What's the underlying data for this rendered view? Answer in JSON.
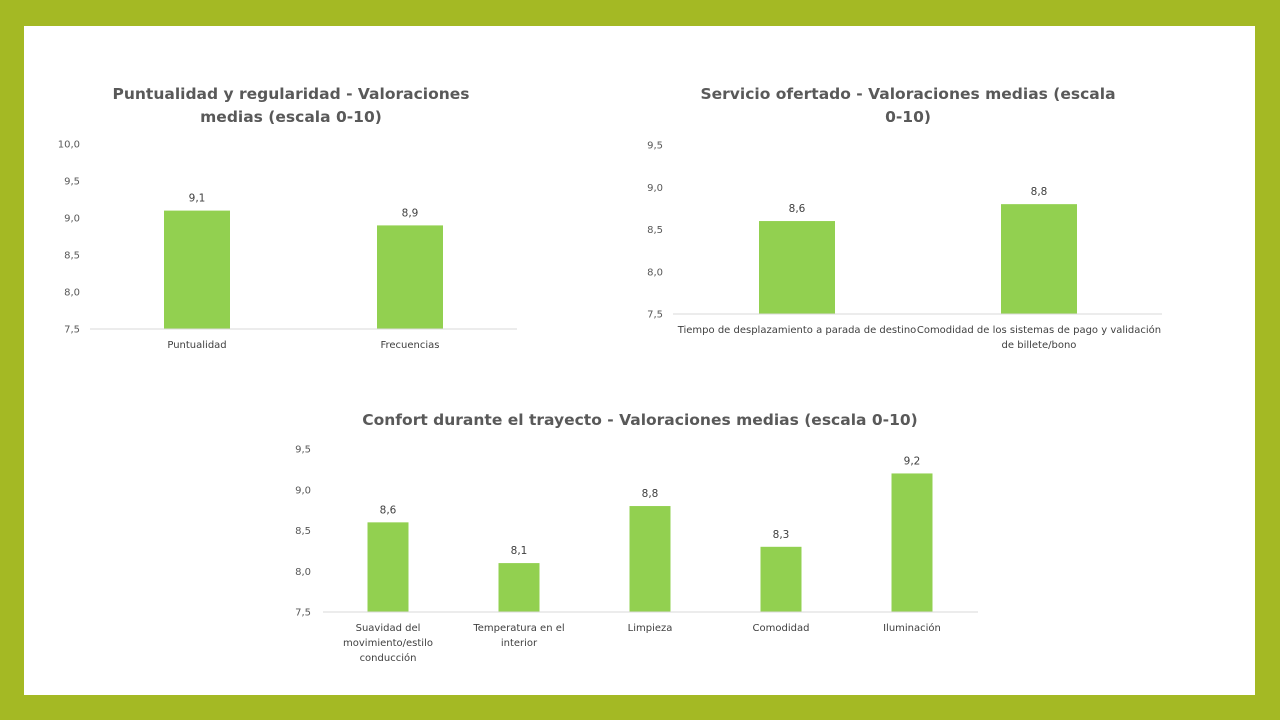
{
  "colors": {
    "frame": "#a4b924",
    "bar": "#92d050",
    "axis": "#d9d9d9"
  },
  "chart_data": [
    {
      "type": "bar",
      "title": "Puntualidad y regularidad - Valoraciones medias (escala 0-10)",
      "categories": [
        "Puntualidad",
        "Frecuencias"
      ],
      "values": [
        9.1,
        8.9
      ],
      "value_labels": [
        "9,1",
        "8,9"
      ],
      "ylim": [
        7.5,
        10.0
      ],
      "yticks": [
        7.5,
        8.0,
        8.5,
        9.0,
        9.5,
        10.0
      ],
      "ytick_labels": [
        "7,5",
        "8,0",
        "8,5",
        "9,0",
        "9,5",
        "10,0"
      ],
      "grid": false,
      "legend": false
    },
    {
      "type": "bar",
      "title": "Servicio ofertado -  Valoraciones medias (escala 0-10)",
      "categories": [
        "Tiempo de desplazamiento a parada de destino",
        "Comodidad de los sistemas de pago y validación de billete/bono"
      ],
      "values": [
        8.6,
        8.8
      ],
      "value_labels": [
        "8,6",
        "8,8"
      ],
      "ylim": [
        7.5,
        9.5
      ],
      "yticks": [
        7.5,
        8.0,
        8.5,
        9.0,
        9.5
      ],
      "ytick_labels": [
        "7,5",
        "8,0",
        "8,5",
        "9,0",
        "9,5"
      ],
      "grid": false,
      "legend": false
    },
    {
      "type": "bar",
      "title": "Confort durante el trayecto - Valoraciones medias (escala 0-10)",
      "categories": [
        "Suavidad del movimiento/estilo conducción",
        "Temperatura en el interior",
        "Limpieza",
        "Comodidad",
        "Iluminación"
      ],
      "values": [
        8.6,
        8.1,
        8.8,
        8.3,
        9.2
      ],
      "value_labels": [
        "8,6",
        "8,1",
        "8,8",
        "8,3",
        "9,2"
      ],
      "ylim": [
        7.5,
        9.5
      ],
      "yticks": [
        7.5,
        8.0,
        8.5,
        9.0,
        9.5
      ],
      "ytick_labels": [
        "7,5",
        "8,0",
        "8,5",
        "9,0",
        "9,5"
      ],
      "grid": false,
      "legend": false
    }
  ]
}
